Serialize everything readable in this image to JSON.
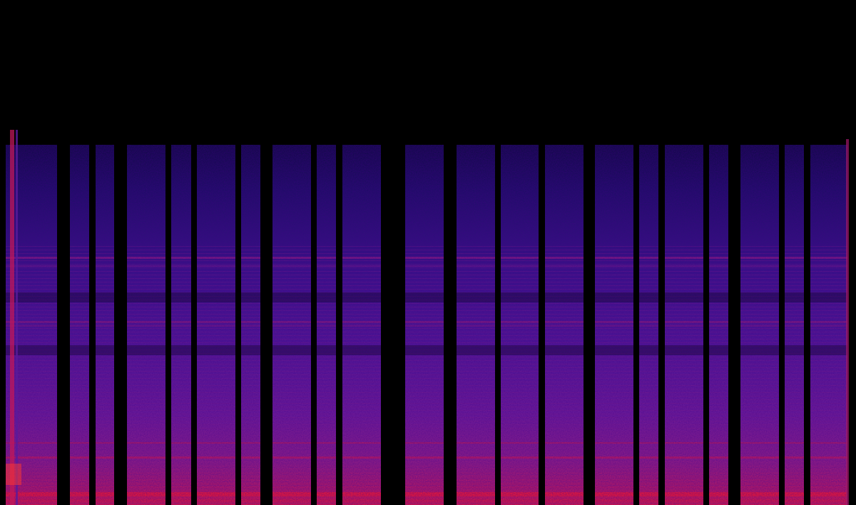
{
  "image": {
    "kind": "spectrogram",
    "colormap": "magma-like",
    "background_color": "#000000",
    "colors": {
      "low_energy": "#1a0a5e",
      "mid_energy": "#5a1a9a",
      "high_energy": "#c0185a",
      "peak_energy": "#ff2040"
    }
  }
}
